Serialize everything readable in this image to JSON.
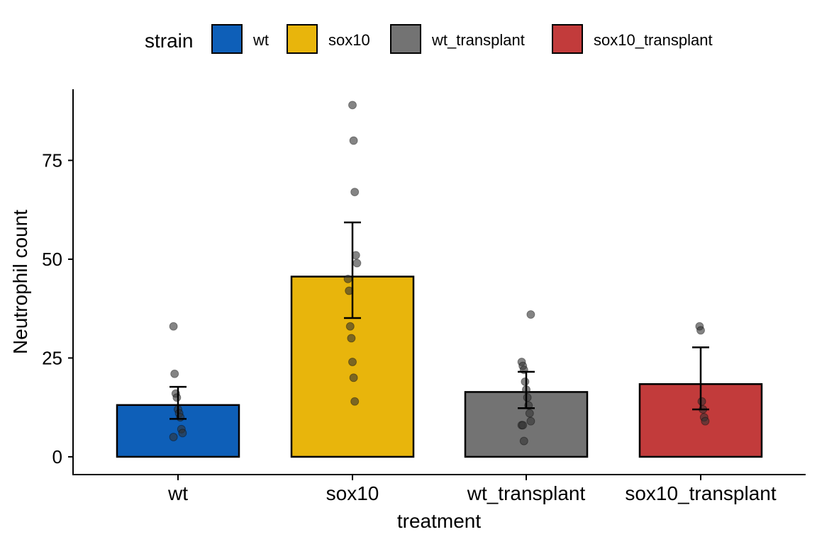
{
  "legend": {
    "title": "strain",
    "items": [
      {
        "label": "wt",
        "color": "#0E5FB8"
      },
      {
        "label": "sox10",
        "color": "#E8B50C"
      },
      {
        "label": "wt_transplant",
        "color": "#737373"
      },
      {
        "label": "sox10_transplant",
        "color": "#C23B3B"
      }
    ]
  },
  "chart_data": {
    "type": "bar",
    "xlabel": "treatment",
    "ylabel": "Neutrophil count",
    "categories": [
      "wt",
      "sox10",
      "wt_transplant",
      "sox10_transplant"
    ],
    "values": [
      13.1,
      45.6,
      16.4,
      18.4
    ],
    "error_bars": [
      {
        "low": 9.6,
        "high": 17.7
      },
      {
        "low": 35.1,
        "high": 59.3
      },
      {
        "low": 12.3,
        "high": 21.5
      },
      {
        "low": 12.0,
        "high": 27.7
      }
    ],
    "points": [
      [
        33,
        21,
        16,
        15,
        12,
        11,
        10,
        7,
        6,
        5
      ],
      [
        89,
        80,
        67,
        51,
        49,
        45,
        42,
        33,
        30,
        24,
        20,
        14
      ],
      [
        36,
        24,
        23,
        22,
        19,
        17,
        15,
        13,
        11,
        9,
        8,
        8,
        4
      ],
      [
        33,
        32,
        14,
        12,
        10,
        9
      ]
    ],
    "colors": [
      "#0E5FB8",
      "#E8B50C",
      "#737373",
      "#C23B3B"
    ],
    "ylim": [
      -4.5,
      93
    ],
    "yticks": [
      0,
      25,
      50,
      75
    ],
    "grid": false,
    "legend_position": "top"
  }
}
